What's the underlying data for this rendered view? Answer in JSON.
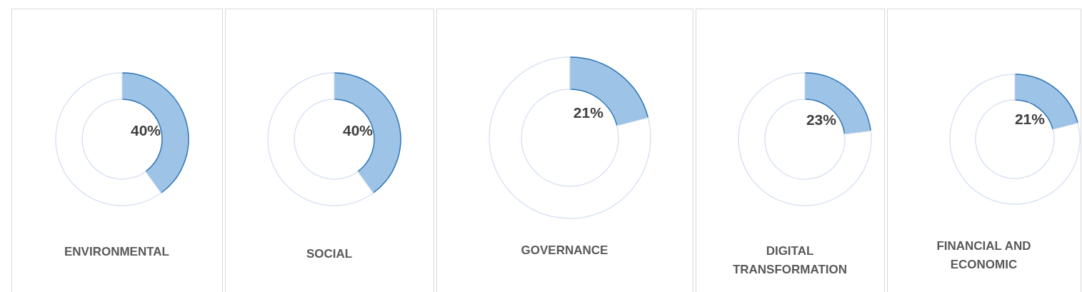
{
  "chart_data": [
    {
      "type": "donut",
      "title": "ENVIRONMENTAL",
      "categories": [
        null,
        null
      ],
      "values": [
        40,
        60
      ],
      "colors": [
        "#9dc3e6",
        "#ffffff"
      ],
      "value_labels": [
        "40%",
        null
      ]
    },
    {
      "type": "donut",
      "title": "SOCIAL",
      "categories": [
        null,
        null
      ],
      "values": [
        40,
        60
      ],
      "colors": [
        "#9dc3e6",
        "#ffffff"
      ],
      "value_labels": [
        "40%",
        null
      ]
    },
    {
      "type": "donut",
      "title": "GOVERNANCE",
      "categories": [
        null,
        null
      ],
      "values": [
        21,
        79
      ],
      "colors": [
        "#9dc3e6",
        "#ffffff"
      ],
      "value_labels": [
        "21%",
        null
      ]
    },
    {
      "type": "donut",
      "title": "DIGITAL TRANSFORMATION",
      "categories": [
        null,
        null
      ],
      "values": [
        23,
        77
      ],
      "colors": [
        "#9dc3e6",
        "#ffffff"
      ],
      "value_labels": [
        "23%",
        null
      ]
    },
    {
      "type": "donut",
      "title": "FINANCIAL AND ECONOMIC",
      "categories": [
        null,
        null
      ],
      "values": [
        21,
        79
      ],
      "colors": [
        "#9dc3e6",
        "#ffffff"
      ],
      "value_labels": [
        "21%",
        null
      ]
    }
  ]
}
